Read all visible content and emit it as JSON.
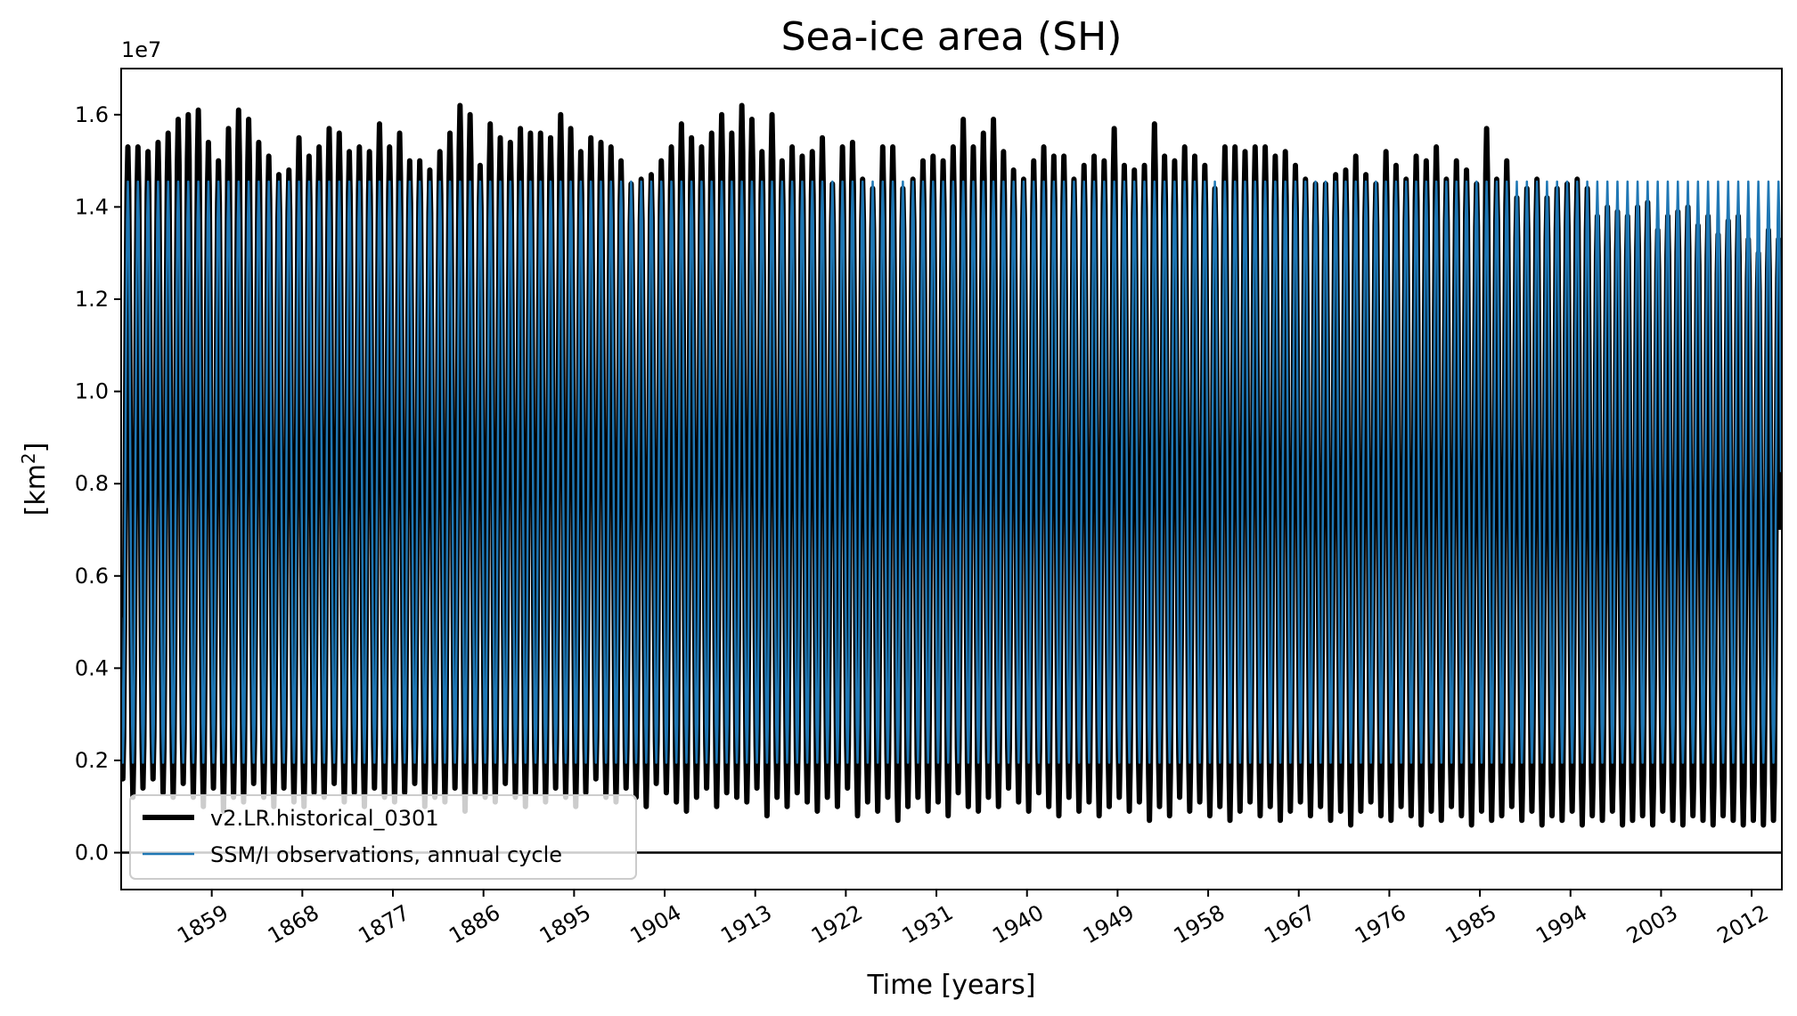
{
  "chart_data": {
    "type": "line",
    "title": "Sea-ice area (SH)",
    "xlabel": "Time [years]",
    "ylabel_main": "[km",
    "ylabel_sup": "2",
    "ylabel_close": "]",
    "y_offset_label": "1e7",
    "y_scale": 10000000,
    "xlim": [
      1850.0,
      2015.0
    ],
    "ylim": [
      -0.08,
      1.7
    ],
    "x_ticks": [
      1859,
      1868,
      1877,
      1886,
      1895,
      1904,
      1913,
      1922,
      1931,
      1940,
      1949,
      1958,
      1967,
      1976,
      1985,
      1994,
      2003,
      2012
    ],
    "x_tick_labels": [
      "1859",
      "1868",
      "1877",
      "1886",
      "1895",
      "1904",
      "1913",
      "1922",
      "1931",
      "1940",
      "1949",
      "1958",
      "1967",
      "1976",
      "1985",
      "1994",
      "2003",
      "2012"
    ],
    "y_ticks": [
      0.0,
      0.2,
      0.4,
      0.6,
      0.8,
      1.0,
      1.2,
      1.4,
      1.6
    ],
    "y_tick_labels": [
      "0.0",
      "0.2",
      "0.4",
      "0.6",
      "0.8",
      "1.0",
      "1.2",
      "1.4",
      "1.6"
    ],
    "hline_y": 0.0,
    "grid": false,
    "legend_position": "lower-left",
    "series": [
      {
        "name": "v2.LR.historical_0301",
        "color": "#000000",
        "linewidth": "thick",
        "x_start_year": 1850,
        "annual_max": [
          1.53,
          1.53,
          1.52,
          1.54,
          1.56,
          1.59,
          1.6,
          1.61,
          1.54,
          1.5,
          1.57,
          1.61,
          1.59,
          1.54,
          1.51,
          1.47,
          1.48,
          1.55,
          1.51,
          1.53,
          1.57,
          1.56,
          1.52,
          1.53,
          1.52,
          1.58,
          1.53,
          1.56,
          1.5,
          1.5,
          1.48,
          1.52,
          1.56,
          1.62,
          1.6,
          1.49,
          1.58,
          1.55,
          1.54,
          1.57,
          1.56,
          1.56,
          1.55,
          1.6,
          1.57,
          1.52,
          1.55,
          1.54,
          1.53,
          1.5,
          1.45,
          1.46,
          1.47,
          1.5,
          1.53,
          1.58,
          1.55,
          1.53,
          1.56,
          1.6,
          1.56,
          1.62,
          1.59,
          1.52,
          1.6,
          1.5,
          1.53,
          1.51,
          1.52,
          1.55,
          1.45,
          1.53,
          1.54,
          1.46,
          1.44,
          1.53,
          1.53,
          1.44,
          1.46,
          1.5,
          1.51,
          1.5,
          1.53,
          1.59,
          1.53,
          1.56,
          1.59,
          1.52,
          1.48,
          1.46,
          1.5,
          1.53,
          1.51,
          1.51,
          1.46,
          1.49,
          1.51,
          1.5,
          1.57,
          1.49,
          1.48,
          1.49,
          1.58,
          1.51,
          1.5,
          1.53,
          1.51,
          1.49,
          1.44,
          1.53,
          1.53,
          1.52,
          1.53,
          1.53,
          1.51,
          1.52,
          1.49,
          1.46,
          1.45,
          1.45,
          1.47,
          1.48,
          1.51,
          1.47,
          1.45,
          1.52,
          1.49,
          1.46,
          1.51,
          1.5,
          1.53,
          1.46,
          1.5,
          1.48,
          1.45,
          1.57,
          1.46,
          1.5,
          1.42,
          1.44,
          1.46,
          1.42,
          1.44,
          1.45,
          1.46,
          1.44,
          1.38,
          1.4,
          1.39,
          1.38,
          1.4,
          1.41,
          1.35,
          1.38,
          1.39,
          1.4,
          1.36,
          1.38,
          1.34,
          1.37,
          1.38,
          1.33,
          1.3,
          1.35,
          1.33
        ],
        "annual_min": [
          0.16,
          0.12,
          0.14,
          0.16,
          0.13,
          0.12,
          0.15,
          0.12,
          0.1,
          0.14,
          0.09,
          0.12,
          0.11,
          0.15,
          0.12,
          0.1,
          0.14,
          0.11,
          0.1,
          0.13,
          0.12,
          0.15,
          0.11,
          0.13,
          0.1,
          0.14,
          0.12,
          0.11,
          0.13,
          0.15,
          0.1,
          0.12,
          0.11,
          0.14,
          0.09,
          0.13,
          0.12,
          0.11,
          0.15,
          0.12,
          0.1,
          0.13,
          0.11,
          0.14,
          0.12,
          0.1,
          0.13,
          0.16,
          0.12,
          0.11,
          0.14,
          0.12,
          0.1,
          0.15,
          0.13,
          0.11,
          0.09,
          0.12,
          0.14,
          0.1,
          0.13,
          0.12,
          0.11,
          0.14,
          0.08,
          0.12,
          0.1,
          0.13,
          0.11,
          0.09,
          0.12,
          0.1,
          0.14,
          0.08,
          0.11,
          0.09,
          0.12,
          0.07,
          0.1,
          0.12,
          0.09,
          0.11,
          0.08,
          0.13,
          0.1,
          0.09,
          0.12,
          0.1,
          0.14,
          0.11,
          0.09,
          0.13,
          0.1,
          0.08,
          0.12,
          0.09,
          0.11,
          0.08,
          0.1,
          0.12,
          0.09,
          0.11,
          0.07,
          0.1,
          0.08,
          0.12,
          0.09,
          0.11,
          0.08,
          0.1,
          0.07,
          0.09,
          0.11,
          0.08,
          0.1,
          0.07,
          0.09,
          0.11,
          0.08,
          0.1,
          0.07,
          0.09,
          0.06,
          0.09,
          0.11,
          0.08,
          0.07,
          0.1,
          0.08,
          0.06,
          0.09,
          0.07,
          0.1,
          0.08,
          0.06,
          0.09,
          0.07,
          0.08,
          0.1,
          0.07,
          0.09,
          0.06,
          0.08,
          0.07,
          0.09,
          0.06,
          0.08,
          0.07,
          0.09,
          0.06,
          0.07,
          0.08,
          0.06,
          0.09,
          0.07,
          0.06,
          0.08,
          0.07,
          0.06,
          0.08,
          0.07,
          0.06,
          0.07,
          0.06,
          0.07
        ]
      },
      {
        "name": "SSM/I observations, annual cycle",
        "color": "#1f77b4",
        "linewidth": "thin",
        "annual_max": 1.455,
        "annual_min": 0.195
      }
    ]
  }
}
